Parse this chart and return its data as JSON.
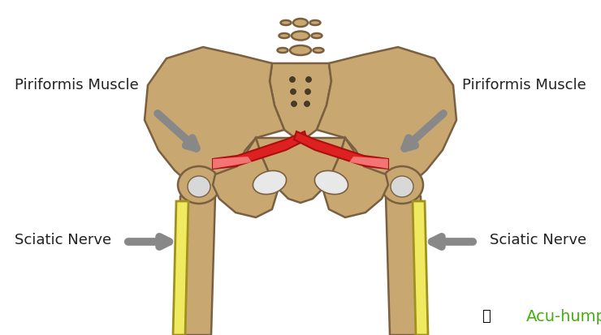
{
  "background_color": "#ffffff",
  "bone_color": "#c8a870",
  "bone_edge_color": "#7a6040",
  "muscle_red": "#dd2020",
  "muscle_pink": "#ff9999",
  "nerve_color": "#f0ea60",
  "nerve_edge_color": "#a09020",
  "arrow_color": "#888888",
  "text_color": "#222222",
  "label_piriformis_left": "Piriformis Muscle",
  "label_piriformis_right": "Piriformis Muscle",
  "label_sciatic_left": "Sciatic Nerve",
  "label_sciatic_right": "Sciatic Nerve",
  "brand_text": "Acu-hump",
  "brand_color": "#44b010",
  "figwidth": 7.4,
  "figheight": 4.13,
  "dpi": 100
}
